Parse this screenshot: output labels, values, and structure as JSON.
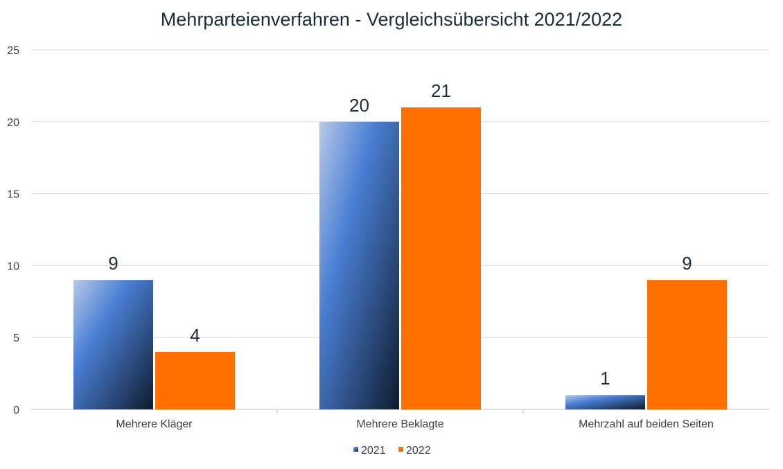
{
  "chart_data": {
    "type": "bar",
    "title": "Mehrparteienverfahren - Vergleichsübersicht 2021/2022",
    "categories": [
      "Mehrere Kläger",
      "Mehrere Beklagte",
      "Mehrzahl auf beiden Seiten"
    ],
    "series": [
      {
        "name": "2021",
        "values": [
          9,
          20,
          1
        ],
        "color": "#4a7fd4",
        "style": "blue-gradient"
      },
      {
        "name": "2022",
        "values": [
          4,
          21,
          9
        ],
        "color": "#ff7000"
      }
    ],
    "ylim": [
      0,
      25
    ],
    "yticks": [
      0,
      5,
      10,
      15,
      20,
      25
    ],
    "grid": true,
    "legend_position": "bottom",
    "data_labels": true
  }
}
